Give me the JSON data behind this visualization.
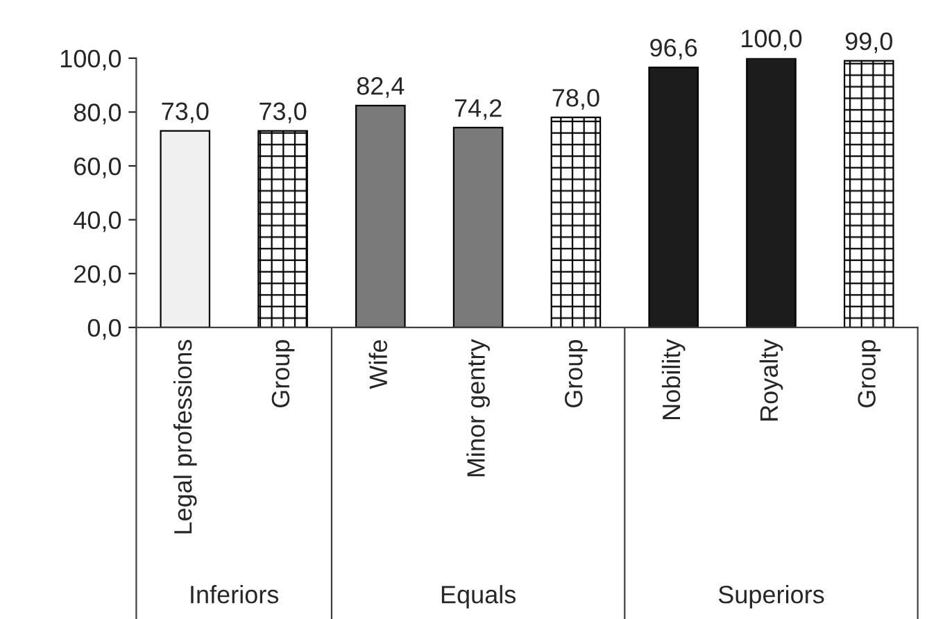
{
  "chart_data": {
    "type": "bar",
    "categories": [
      "Legal professions",
      "Group",
      "Wife",
      "Minor gentry",
      "Group",
      "Nobility",
      "Royalty",
      "Group"
    ],
    "values": [
      73.0,
      73.0,
      82.4,
      74.2,
      78.0,
      96.6,
      100.0,
      99.0
    ],
    "value_labels": [
      "73,0",
      "73,0",
      "82,4",
      "74,2",
      "78,0",
      "96,6",
      "100,0",
      "99,0"
    ],
    "colors": [
      "#f0f0f0",
      "#ffffff",
      "#7a7a7a",
      "#7a7a7a",
      "#ffffff",
      "#1c1c1c",
      "#1c1c1c",
      "#ffffff"
    ],
    "ylim": [
      0,
      100
    ],
    "yticks": [
      {
        "value": 0,
        "label": "0,0"
      },
      {
        "value": 20,
        "label": "20,0"
      },
      {
        "value": 40,
        "label": "40,0"
      },
      {
        "value": 60,
        "label": "60,0"
      },
      {
        "value": 80,
        "label": "80,0"
      },
      {
        "value": 100,
        "label": "100,0"
      }
    ],
    "annotations": [
      "Inferiors",
      "Equals",
      "Superiors"
    ],
    "grid": false,
    "legend": false
  }
}
